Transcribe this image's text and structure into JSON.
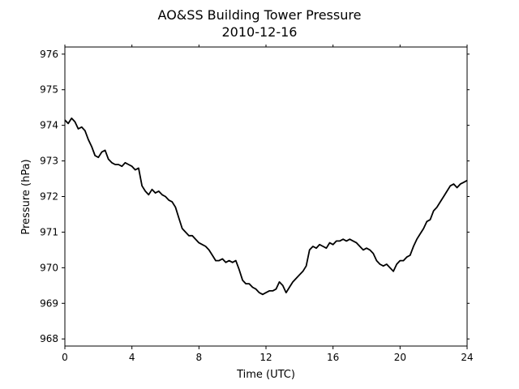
{
  "chart_data": {
    "type": "line",
    "title": "AO&SS Building Tower Pressure",
    "subtitle": "2010-12-16",
    "xlabel": "Time (UTC)",
    "ylabel": "Pressure (hPa)",
    "xlim": [
      0,
      24
    ],
    "ylim": [
      967.8,
      976.2
    ],
    "xticks": [
      0,
      4,
      8,
      12,
      16,
      20,
      24
    ],
    "yticks": [
      968,
      969,
      970,
      971,
      972,
      973,
      974,
      975,
      976
    ],
    "grid": false,
    "legend": "none",
    "series": [
      {
        "color": "#000000",
        "points": [
          [
            0.0,
            974.15
          ],
          [
            0.2,
            974.05
          ],
          [
            0.4,
            974.2
          ],
          [
            0.6,
            974.1
          ],
          [
            0.8,
            973.9
          ],
          [
            1.0,
            973.95
          ],
          [
            1.2,
            973.85
          ],
          [
            1.4,
            973.6
          ],
          [
            1.6,
            973.4
          ],
          [
            1.8,
            973.15
          ],
          [
            2.0,
            973.1
          ],
          [
            2.2,
            973.25
          ],
          [
            2.4,
            973.3
          ],
          [
            2.6,
            973.05
          ],
          [
            2.8,
            972.95
          ],
          [
            3.0,
            972.9
          ],
          [
            3.2,
            972.9
          ],
          [
            3.4,
            972.85
          ],
          [
            3.6,
            972.95
          ],
          [
            3.8,
            972.9
          ],
          [
            4.0,
            972.85
          ],
          [
            4.2,
            972.75
          ],
          [
            4.4,
            972.8
          ],
          [
            4.6,
            972.3
          ],
          [
            4.8,
            972.15
          ],
          [
            5.0,
            972.05
          ],
          [
            5.2,
            972.2
          ],
          [
            5.4,
            972.1
          ],
          [
            5.6,
            972.15
          ],
          [
            5.8,
            972.05
          ],
          [
            6.0,
            972.0
          ],
          [
            6.2,
            971.9
          ],
          [
            6.4,
            971.85
          ],
          [
            6.6,
            971.7
          ],
          [
            6.8,
            971.4
          ],
          [
            7.0,
            971.1
          ],
          [
            7.2,
            971.0
          ],
          [
            7.4,
            970.9
          ],
          [
            7.6,
            970.9
          ],
          [
            7.8,
            970.8
          ],
          [
            8.0,
            970.7
          ],
          [
            8.2,
            970.65
          ],
          [
            8.4,
            970.6
          ],
          [
            8.6,
            970.5
          ],
          [
            8.8,
            970.35
          ],
          [
            9.0,
            970.2
          ],
          [
            9.2,
            970.2
          ],
          [
            9.4,
            970.25
          ],
          [
            9.6,
            970.15
          ],
          [
            9.8,
            970.2
          ],
          [
            10.0,
            970.15
          ],
          [
            10.2,
            970.2
          ],
          [
            10.4,
            969.95
          ],
          [
            10.6,
            969.65
          ],
          [
            10.8,
            969.55
          ],
          [
            11.0,
            969.55
          ],
          [
            11.2,
            969.45
          ],
          [
            11.4,
            969.4
          ],
          [
            11.6,
            969.3
          ],
          [
            11.8,
            969.25
          ],
          [
            12.0,
            969.3
          ],
          [
            12.2,
            969.35
          ],
          [
            12.4,
            969.35
          ],
          [
            12.6,
            969.4
          ],
          [
            12.8,
            969.6
          ],
          [
            13.0,
            969.5
          ],
          [
            13.2,
            969.3
          ],
          [
            13.4,
            969.45
          ],
          [
            13.6,
            969.6
          ],
          [
            13.8,
            969.7
          ],
          [
            14.0,
            969.8
          ],
          [
            14.2,
            969.9
          ],
          [
            14.4,
            970.05
          ],
          [
            14.6,
            970.5
          ],
          [
            14.8,
            970.6
          ],
          [
            15.0,
            970.55
          ],
          [
            15.2,
            970.65
          ],
          [
            15.4,
            970.6
          ],
          [
            15.6,
            970.55
          ],
          [
            15.8,
            970.7
          ],
          [
            16.0,
            970.65
          ],
          [
            16.2,
            970.75
          ],
          [
            16.4,
            970.75
          ],
          [
            16.6,
            970.8
          ],
          [
            16.8,
            970.75
          ],
          [
            17.0,
            970.8
          ],
          [
            17.2,
            970.75
          ],
          [
            17.4,
            970.7
          ],
          [
            17.6,
            970.6
          ],
          [
            17.8,
            970.5
          ],
          [
            18.0,
            970.55
          ],
          [
            18.2,
            970.5
          ],
          [
            18.4,
            970.4
          ],
          [
            18.6,
            970.2
          ],
          [
            18.8,
            970.1
          ],
          [
            19.0,
            970.05
          ],
          [
            19.2,
            970.1
          ],
          [
            19.4,
            970.0
          ],
          [
            19.6,
            969.9
          ],
          [
            19.8,
            970.1
          ],
          [
            20.0,
            970.2
          ],
          [
            20.2,
            970.2
          ],
          [
            20.4,
            970.3
          ],
          [
            20.6,
            970.35
          ],
          [
            20.8,
            970.6
          ],
          [
            21.0,
            970.8
          ],
          [
            21.2,
            970.95
          ],
          [
            21.4,
            971.1
          ],
          [
            21.6,
            971.3
          ],
          [
            21.8,
            971.35
          ],
          [
            22.0,
            971.6
          ],
          [
            22.2,
            971.7
          ],
          [
            22.4,
            971.85
          ],
          [
            22.6,
            972.0
          ],
          [
            22.8,
            972.15
          ],
          [
            23.0,
            972.3
          ],
          [
            23.2,
            972.35
          ],
          [
            23.4,
            972.25
          ],
          [
            23.6,
            972.35
          ],
          [
            23.8,
            972.4
          ],
          [
            24.0,
            972.45
          ]
        ]
      }
    ]
  }
}
